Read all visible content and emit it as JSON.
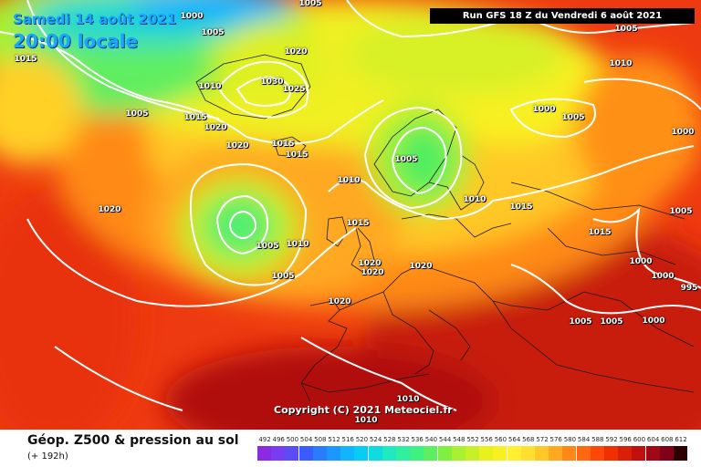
{
  "header": {
    "date": "Samedi 14 août 2021",
    "time": "20:00 locale",
    "run_info": "Run GFS 18 Z du Vendredi 6 août 2021"
  },
  "map": {
    "copyright": "Copyright (C) 2021 Meteociel.fr",
    "isobar_labels": [
      "1000",
      "1005",
      "1005",
      "1015",
      "1020",
      "1030",
      "1025",
      "1010",
      "1005",
      "1015",
      "1020",
      "1020",
      "1015",
      "1015",
      "1005",
      "1010",
      "1015",
      "1020",
      "1005",
      "1010",
      "1005",
      "1020",
      "1020",
      "1020",
      "1020",
      "1005",
      "1010",
      "1000",
      "1005",
      "1015",
      "1015",
      "1000",
      "1000",
      "1000",
      "995",
      "1005",
      "1005",
      "1000",
      "1005",
      "1010",
      "1010",
      "1010"
    ]
  },
  "footer": {
    "title": "Géop. Z500 & pression au sol",
    "subtitle": "(+ 192h)"
  },
  "legend": {
    "values": [
      "492",
      "496",
      "500",
      "504",
      "508",
      "512",
      "516",
      "520",
      "524",
      "528",
      "532",
      "536",
      "540",
      "544",
      "548",
      "552",
      "556",
      "560",
      "564",
      "568",
      "572",
      "576",
      "580",
      "584",
      "588",
      "592",
      "596",
      "600",
      "604",
      "608",
      "612"
    ],
    "colors": [
      "#8a2be2",
      "#7a3cf0",
      "#5b4cf5",
      "#3a5cff",
      "#2a7cff",
      "#1a98ff",
      "#10b4ff",
      "#08ccf5",
      "#10dce0",
      "#20e8c0",
      "#30f0a0",
      "#40f080",
      "#5cf060",
      "#80f040",
      "#a8f030",
      "#c8f028",
      "#e8f020",
      "#f8f020",
      "#fff030",
      "#ffe030",
      "#ffc828",
      "#ffa820",
      "#ff8818",
      "#ff6810",
      "#ff4808",
      "#f03000",
      "#d82008",
      "#c01010",
      "#a00818",
      "#800018",
      "#300000"
    ]
  },
  "colors": {
    "text_blue": "#1aa7ff",
    "run_bg": "#000000",
    "isobar": "#ffffff"
  }
}
